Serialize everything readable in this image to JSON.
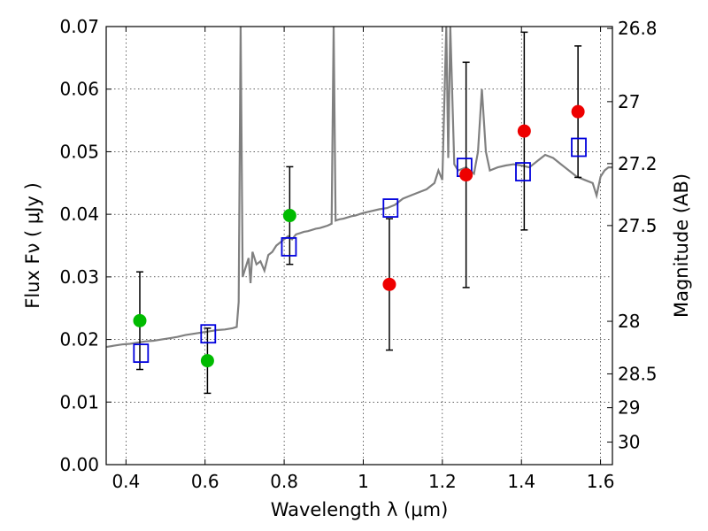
{
  "chart_data": {
    "type": "scatter",
    "title": "",
    "xlabel": "Wavelength  λ (μm)",
    "ylabel": "Flux  Fν  ( μJy )",
    "y2label": "Magnitude (AB)",
    "xlim": [
      0.35,
      1.63
    ],
    "ylim": [
      0,
      0.07
    ],
    "grid": true,
    "x_ticks": [
      {
        "value": 0.4,
        "label": "0.4"
      },
      {
        "value": 0.6,
        "label": "0.6"
      },
      {
        "value": 0.8,
        "label": "0.8"
      },
      {
        "value": 1.0,
        "label": "1"
      },
      {
        "value": 1.2,
        "label": "1.2"
      },
      {
        "value": 1.4,
        "label": "1.4"
      },
      {
        "value": 1.6,
        "label": "1.6"
      }
    ],
    "y_ticks": [
      {
        "value": 0.0,
        "label": "0.00"
      },
      {
        "value": 0.01,
        "label": "0.01"
      },
      {
        "value": 0.02,
        "label": "0.02"
      },
      {
        "value": 0.03,
        "label": "0.03"
      },
      {
        "value": 0.04,
        "label": "0.04"
      },
      {
        "value": 0.05,
        "label": "0.05"
      },
      {
        "value": 0.06,
        "label": "0.06"
      },
      {
        "value": 0.07,
        "label": "0.07"
      }
    ],
    "y2_ticks": [
      {
        "flux": 0.0697,
        "label": "26.8"
      },
      {
        "flux": 0.058,
        "label": "27"
      },
      {
        "flux": 0.0481,
        "label": "27.2"
      },
      {
        "flux": 0.0382,
        "label": "27.5"
      },
      {
        "flux": 0.0229,
        "label": "28"
      },
      {
        "flux": 0.0145,
        "label": "28.5"
      },
      {
        "flux": 0.0091,
        "label": "29"
      },
      {
        "flux": 0.0036,
        "label": "30"
      }
    ],
    "series": [
      {
        "marker": "filled-circle",
        "color": "#00bb00",
        "points": [
          {
            "x": 0.435,
            "y": 0.023,
            "yerr": 0.0078
          },
          {
            "x": 0.606,
            "y": 0.0166,
            "yerr": 0.0052
          },
          {
            "x": 0.814,
            "y": 0.0398,
            "yerr": 0.0078
          }
        ]
      },
      {
        "marker": "filled-circle",
        "color": "#ee0000",
        "points": [
          {
            "x": 1.066,
            "y": 0.0288,
            "yerr": 0.0105
          },
          {
            "x": 1.26,
            "y": 0.0463,
            "yerr": 0.018
          },
          {
            "x": 1.407,
            "y": 0.0533,
            "yerr": 0.0158
          },
          {
            "x": 1.543,
            "y": 0.0564,
            "yerr": 0.0105
          }
        ]
      },
      {
        "marker": "open-square",
        "color": "#0000dd",
        "points": [
          {
            "x": 0.438,
            "y": 0.0178
          },
          {
            "x": 0.608,
            "y": 0.0209
          },
          {
            "x": 0.812,
            "y": 0.0348
          },
          {
            "x": 1.069,
            "y": 0.041
          },
          {
            "x": 1.256,
            "y": 0.0475
          },
          {
            "x": 1.404,
            "y": 0.0468
          },
          {
            "x": 1.545,
            "y": 0.0507
          }
        ]
      },
      {
        "marker": "line",
        "color": "#808080",
        "points": [
          [
            0.35,
            0.0188
          ],
          [
            0.37,
            0.019
          ],
          [
            0.39,
            0.0192
          ],
          [
            0.41,
            0.0193
          ],
          [
            0.43,
            0.0195
          ],
          [
            0.45,
            0.0197
          ],
          [
            0.47,
            0.0198
          ],
          [
            0.49,
            0.02
          ],
          [
            0.51,
            0.0202
          ],
          [
            0.53,
            0.0204
          ],
          [
            0.55,
            0.0207
          ],
          [
            0.57,
            0.0209
          ],
          [
            0.59,
            0.0211
          ],
          [
            0.61,
            0.0213
          ],
          [
            0.63,
            0.0215
          ],
          [
            0.65,
            0.0216
          ],
          [
            0.67,
            0.0218
          ],
          [
            0.68,
            0.022
          ],
          [
            0.685,
            0.026
          ],
          [
            0.69,
            0.07
          ],
          [
            0.695,
            0.03
          ],
          [
            0.7,
            0.031
          ],
          [
            0.71,
            0.033
          ],
          [
            0.715,
            0.029
          ],
          [
            0.72,
            0.034
          ],
          [
            0.73,
            0.032
          ],
          [
            0.74,
            0.0325
          ],
          [
            0.75,
            0.031
          ],
          [
            0.76,
            0.0335
          ],
          [
            0.77,
            0.034
          ],
          [
            0.78,
            0.035
          ],
          [
            0.79,
            0.0355
          ],
          [
            0.8,
            0.036
          ],
          [
            0.81,
            0.0365
          ],
          [
            0.82,
            0.036
          ],
          [
            0.83,
            0.0368
          ],
          [
            0.84,
            0.037
          ],
          [
            0.85,
            0.0372
          ],
          [
            0.86,
            0.0373
          ],
          [
            0.87,
            0.0375
          ],
          [
            0.88,
            0.0377
          ],
          [
            0.89,
            0.0378
          ],
          [
            0.9,
            0.038
          ],
          [
            0.91,
            0.0382
          ],
          [
            0.92,
            0.0385
          ],
          [
            0.925,
            0.07
          ],
          [
            0.93,
            0.039
          ],
          [
            0.94,
            0.0392
          ],
          [
            0.95,
            0.0393
          ],
          [
            0.96,
            0.0395
          ],
          [
            0.97,
            0.0397
          ],
          [
            0.98,
            0.0398
          ],
          [
            0.99,
            0.04
          ],
          [
            1.0,
            0.0402
          ],
          [
            1.02,
            0.0405
          ],
          [
            1.04,
            0.0408
          ],
          [
            1.06,
            0.041
          ],
          [
            1.08,
            0.0415
          ],
          [
            1.1,
            0.0425
          ],
          [
            1.12,
            0.043
          ],
          [
            1.14,
            0.0435
          ],
          [
            1.16,
            0.044
          ],
          [
            1.18,
            0.045
          ],
          [
            1.19,
            0.047
          ],
          [
            1.2,
            0.0455
          ],
          [
            1.21,
            0.07
          ],
          [
            1.215,
            0.049
          ],
          [
            1.22,
            0.07
          ],
          [
            1.23,
            0.048
          ],
          [
            1.24,
            0.047
          ],
          [
            1.26,
            0.0475
          ],
          [
            1.28,
            0.0465
          ],
          [
            1.29,
            0.05
          ],
          [
            1.3,
            0.06
          ],
          [
            1.31,
            0.05
          ],
          [
            1.32,
            0.047
          ],
          [
            1.34,
            0.0475
          ],
          [
            1.36,
            0.0478
          ],
          [
            1.38,
            0.048
          ],
          [
            1.4,
            0.0478
          ],
          [
            1.42,
            0.0475
          ],
          [
            1.44,
            0.0485
          ],
          [
            1.46,
            0.0495
          ],
          [
            1.48,
            0.049
          ],
          [
            1.5,
            0.048
          ],
          [
            1.52,
            0.047
          ],
          [
            1.54,
            0.046
          ],
          [
            1.56,
            0.0455
          ],
          [
            1.58,
            0.045
          ],
          [
            1.59,
            0.043
          ],
          [
            1.6,
            0.046
          ],
          [
            1.61,
            0.047
          ],
          [
            1.62,
            0.0475
          ],
          [
            1.63,
            0.0475
          ]
        ]
      }
    ]
  }
}
